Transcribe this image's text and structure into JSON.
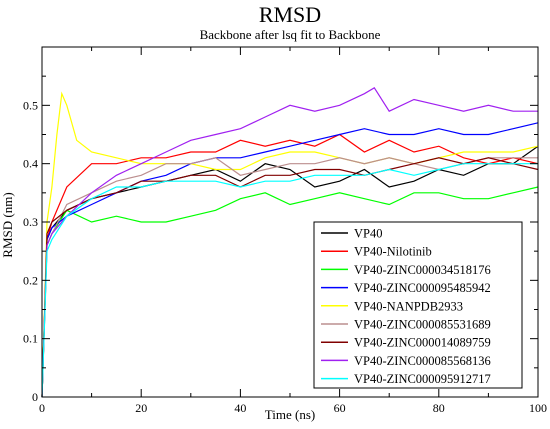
{
  "chart_data": {
    "type": "line",
    "title": "RMSD",
    "subtitle": "Backbone after lsq fit to Backbone",
    "xlabel": "Time (ns)",
    "ylabel": "RMSD (nm)",
    "xlim": [
      0,
      100
    ],
    "ylim": [
      0,
      0.6
    ],
    "xticks": [
      "0",
      "20",
      "40",
      "60",
      "80",
      "100"
    ],
    "yticks": [
      "0",
      "0.1",
      "0.2",
      "0.3",
      "0.4",
      "0.5"
    ],
    "grid": false,
    "legend_position": "bottom-right",
    "series": [
      {
        "name": "VP40",
        "color": "#000000",
        "x": [
          0,
          1,
          2,
          5,
          10,
          15,
          20,
          25,
          30,
          35,
          40,
          45,
          50,
          55,
          60,
          65,
          70,
          75,
          80,
          85,
          90,
          95,
          100
        ],
        "y": [
          0,
          0.27,
          0.29,
          0.32,
          0.34,
          0.35,
          0.36,
          0.37,
          0.38,
          0.39,
          0.37,
          0.4,
          0.39,
          0.36,
          0.37,
          0.39,
          0.36,
          0.37,
          0.39,
          0.38,
          0.4,
          0.4,
          0.43
        ]
      },
      {
        "name": "VP40-Nilotinib",
        "color": "#ff0000",
        "x": [
          0,
          1,
          2,
          5,
          10,
          15,
          20,
          25,
          30,
          35,
          40,
          45,
          50,
          55,
          60,
          65,
          70,
          75,
          80,
          85,
          90,
          95,
          100
        ],
        "y": [
          0,
          0.27,
          0.3,
          0.36,
          0.4,
          0.4,
          0.41,
          0.41,
          0.42,
          0.42,
          0.44,
          0.43,
          0.44,
          0.43,
          0.45,
          0.42,
          0.44,
          0.42,
          0.43,
          0.41,
          0.4,
          0.41,
          0.4
        ]
      },
      {
        "name": "VP40-ZINC000034518176",
        "color": "#00ff00",
        "x": [
          0,
          1,
          2,
          5,
          10,
          15,
          20,
          25,
          30,
          35,
          40,
          45,
          50,
          55,
          60,
          65,
          70,
          75,
          80,
          85,
          90,
          95,
          100
        ],
        "y": [
          0,
          0.26,
          0.28,
          0.32,
          0.3,
          0.31,
          0.3,
          0.3,
          0.31,
          0.32,
          0.34,
          0.35,
          0.33,
          0.34,
          0.35,
          0.34,
          0.33,
          0.35,
          0.35,
          0.34,
          0.34,
          0.35,
          0.36
        ]
      },
      {
        "name": "VP40-ZINC000095485942",
        "color": "#0000ff",
        "x": [
          0,
          1,
          2,
          5,
          10,
          15,
          20,
          25,
          30,
          35,
          40,
          45,
          50,
          55,
          60,
          65,
          70,
          75,
          80,
          85,
          90,
          95,
          100
        ],
        "y": [
          0,
          0.27,
          0.29,
          0.31,
          0.33,
          0.35,
          0.37,
          0.38,
          0.4,
          0.41,
          0.41,
          0.42,
          0.43,
          0.44,
          0.45,
          0.46,
          0.45,
          0.45,
          0.46,
          0.45,
          0.45,
          0.46,
          0.47
        ]
      },
      {
        "name": "VP40-NANPDB2933",
        "color": "#ffff00",
        "x": [
          0,
          1,
          2,
          3,
          4,
          5,
          7,
          10,
          15,
          20,
          25,
          30,
          35,
          40,
          45,
          50,
          55,
          60,
          65,
          70,
          75,
          80,
          85,
          90,
          95,
          100
        ],
        "y": [
          0,
          0.3,
          0.36,
          0.45,
          0.52,
          0.5,
          0.44,
          0.42,
          0.41,
          0.4,
          0.4,
          0.4,
          0.39,
          0.39,
          0.41,
          0.42,
          0.42,
          0.41,
          0.4,
          0.41,
          0.4,
          0.41,
          0.42,
          0.42,
          0.42,
          0.43
        ]
      },
      {
        "name": "VP40-ZINC000085531689",
        "color": "#bc8f8f",
        "x": [
          0,
          1,
          2,
          5,
          10,
          15,
          20,
          25,
          30,
          35,
          40,
          45,
          50,
          55,
          60,
          65,
          70,
          75,
          80,
          85,
          90,
          95,
          100
        ],
        "y": [
          0,
          0.26,
          0.28,
          0.33,
          0.35,
          0.37,
          0.38,
          0.4,
          0.4,
          0.41,
          0.38,
          0.39,
          0.4,
          0.4,
          0.41,
          0.4,
          0.41,
          0.4,
          0.39,
          0.4,
          0.41,
          0.41,
          0.41
        ]
      },
      {
        "name": "VP40-ZINC000014089759",
        "color": "#800000",
        "x": [
          0,
          1,
          2,
          5,
          10,
          15,
          20,
          25,
          30,
          35,
          40,
          45,
          50,
          55,
          60,
          65,
          70,
          75,
          80,
          85,
          90,
          95,
          100
        ],
        "y": [
          0,
          0.28,
          0.3,
          0.32,
          0.34,
          0.35,
          0.37,
          0.37,
          0.38,
          0.38,
          0.36,
          0.38,
          0.38,
          0.39,
          0.39,
          0.38,
          0.39,
          0.4,
          0.41,
          0.4,
          0.41,
          0.4,
          0.39
        ]
      },
      {
        "name": "VP40-ZINC000085568136",
        "color": "#a020f0",
        "x": [
          0,
          1,
          2,
          5,
          10,
          15,
          20,
          25,
          30,
          35,
          40,
          45,
          50,
          55,
          60,
          65,
          67,
          70,
          75,
          80,
          85,
          90,
          95,
          100
        ],
        "y": [
          0,
          0.26,
          0.28,
          0.31,
          0.35,
          0.38,
          0.4,
          0.42,
          0.44,
          0.45,
          0.46,
          0.48,
          0.5,
          0.49,
          0.5,
          0.52,
          0.53,
          0.49,
          0.51,
          0.5,
          0.49,
          0.5,
          0.49,
          0.49
        ]
      },
      {
        "name": "VP40-ZINC000095912717",
        "color": "#00ffff",
        "x": [
          0,
          1,
          2,
          5,
          10,
          15,
          20,
          25,
          30,
          35,
          40,
          45,
          50,
          55,
          60,
          65,
          70,
          75,
          80,
          85,
          90,
          95,
          100
        ],
        "y": [
          0,
          0.25,
          0.27,
          0.31,
          0.34,
          0.36,
          0.36,
          0.37,
          0.37,
          0.37,
          0.36,
          0.37,
          0.37,
          0.38,
          0.38,
          0.38,
          0.39,
          0.38,
          0.39,
          0.4,
          0.4,
          0.4,
          0.4
        ]
      }
    ]
  }
}
